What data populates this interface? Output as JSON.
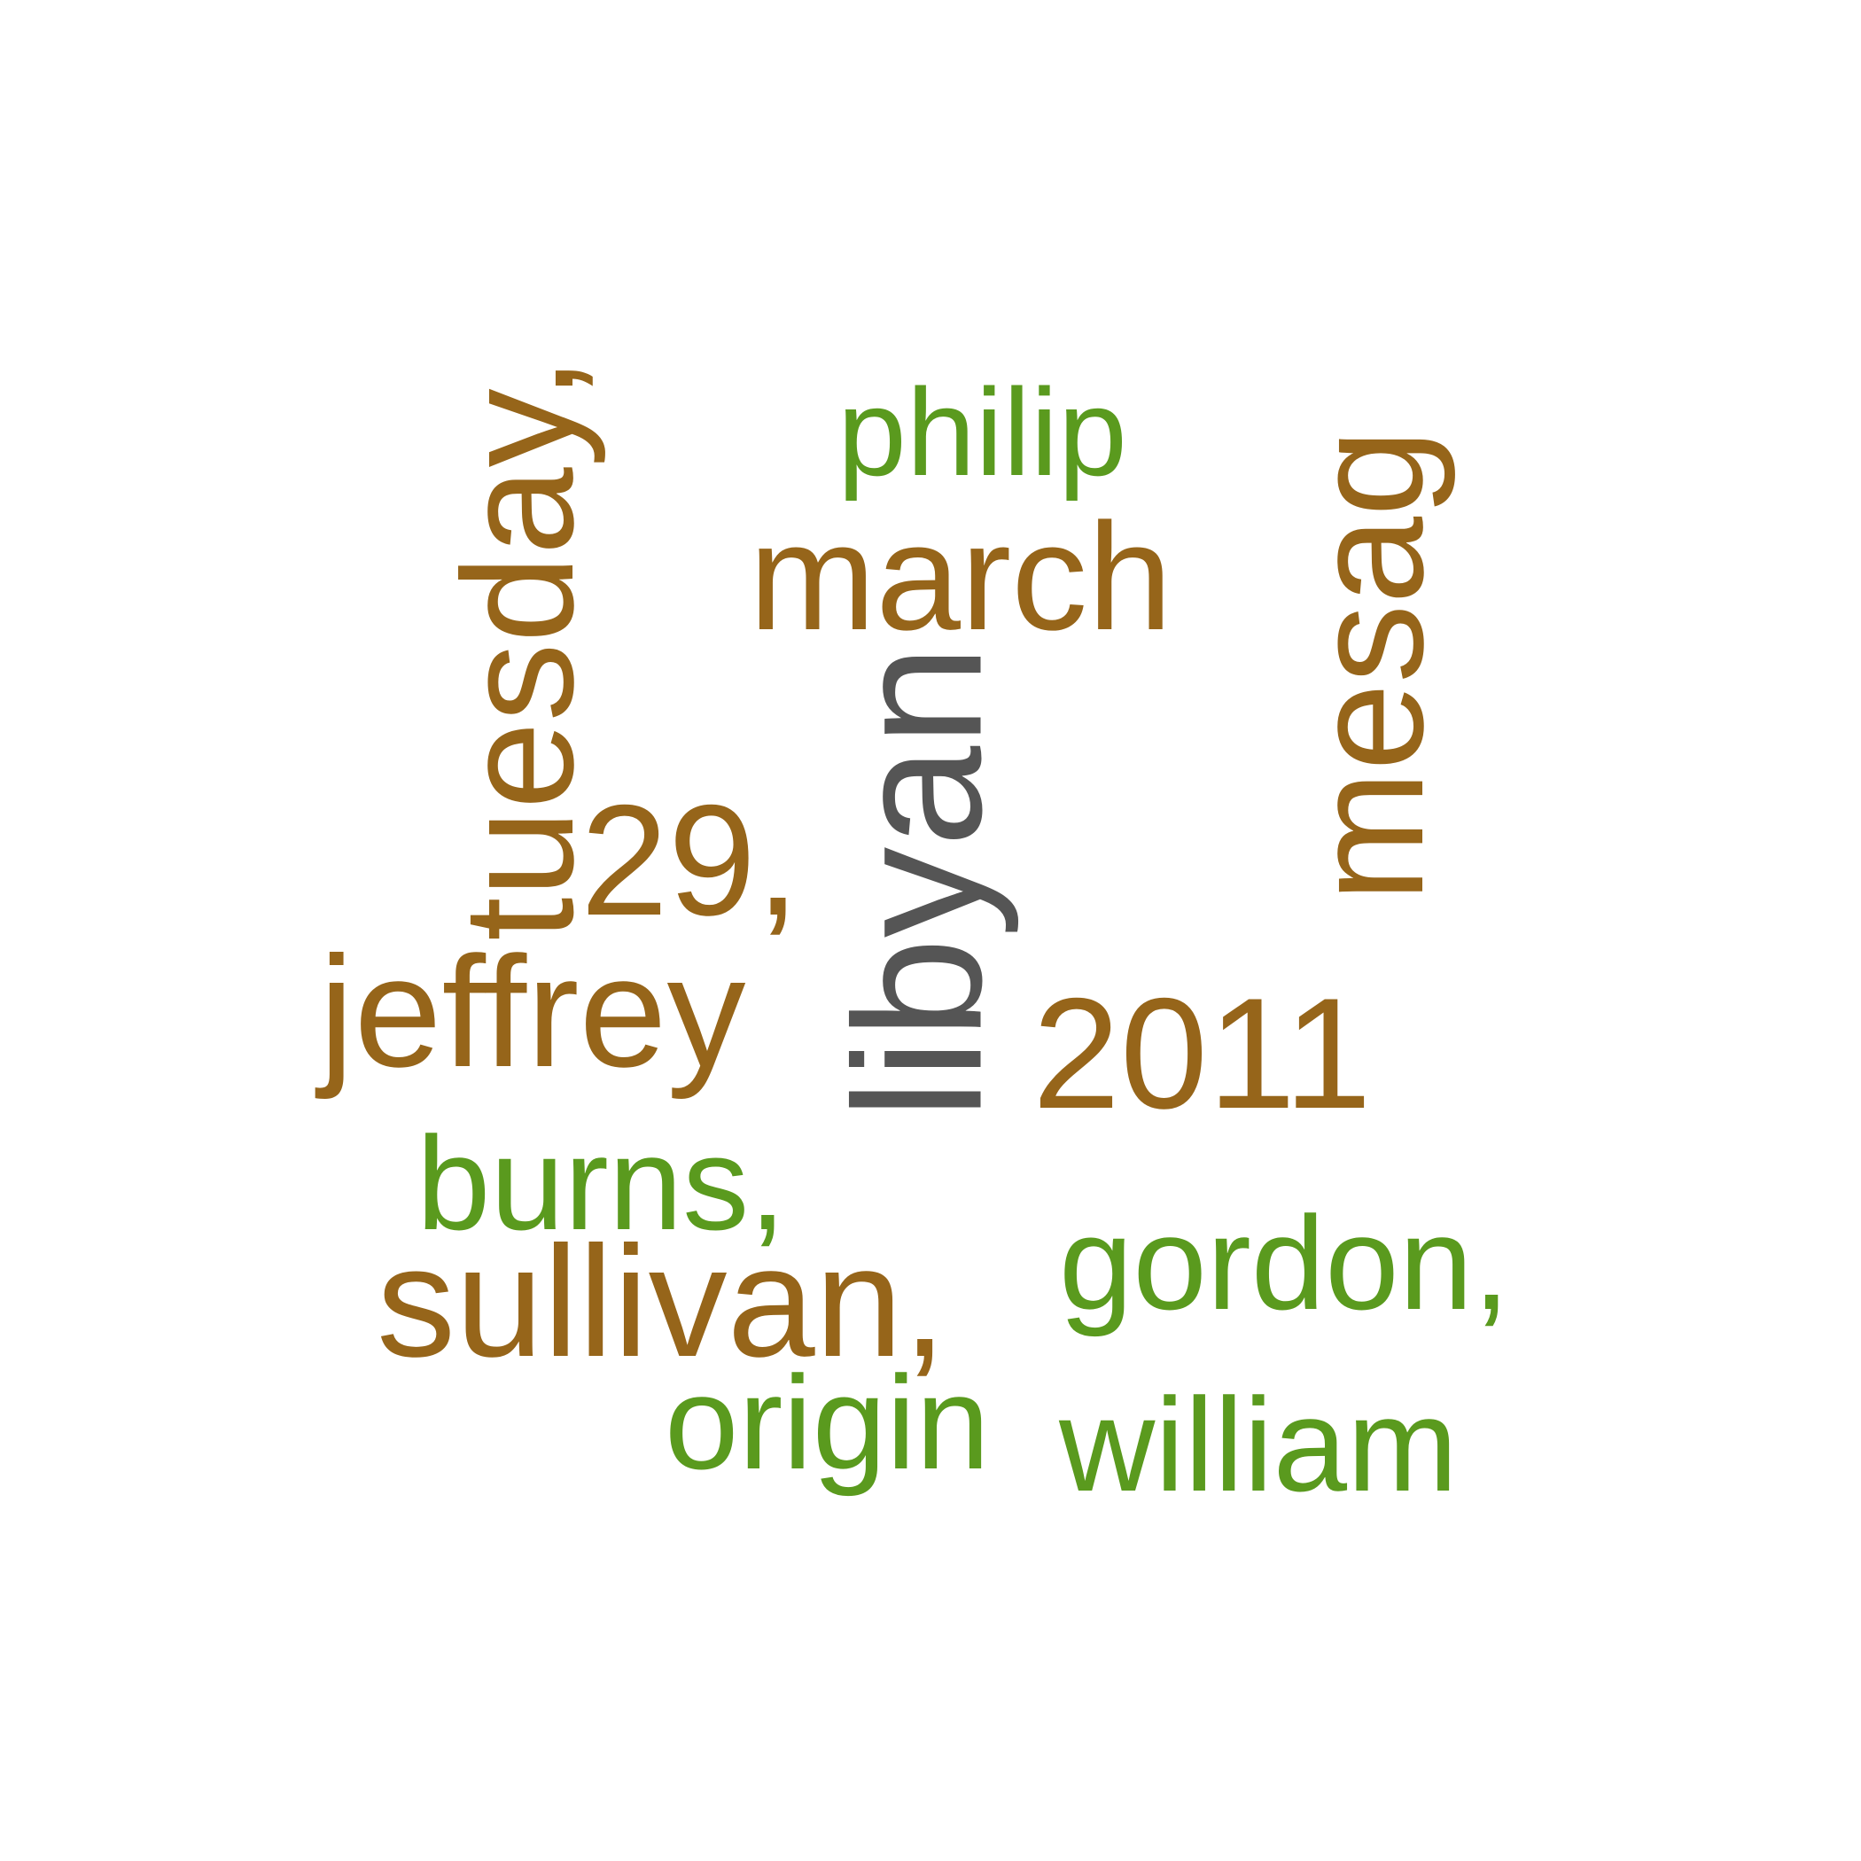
{
  "colors": {
    "brown": "#96651a",
    "green": "#5a9a1e",
    "gray": "#555555",
    "background": "#ffffff"
  },
  "words": {
    "tuesday": "tuesday,",
    "philip": "philip",
    "march": "march",
    "mesag": "mesag",
    "libyan": "libyan",
    "num29": "29,",
    "jeffrey": "jeffrey",
    "year": "2011",
    "burns": "burns,",
    "sullivan": "sullivan,",
    "gordon": "gordon,",
    "origin": "origin",
    "william": "william"
  }
}
